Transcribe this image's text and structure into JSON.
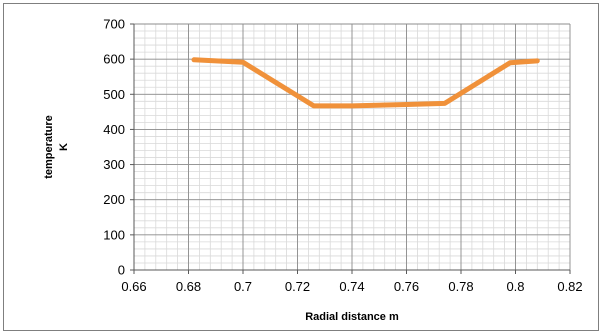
{
  "chart_data": {
    "type": "line",
    "xlabel": "Radial distance  m",
    "ylabel_line1": "temperature",
    "ylabel_line2": "K",
    "xlim": [
      0.66,
      0.82
    ],
    "ylim": [
      0,
      700
    ],
    "x_ticks": [
      "0.66",
      "0.68",
      "0.7",
      "0.72",
      "0.74",
      "0.76",
      "0.78",
      "0.8",
      "0.82"
    ],
    "y_ticks": [
      "0",
      "100",
      "200",
      "300",
      "400",
      "500",
      "600",
      "700"
    ],
    "grid": true,
    "legend": "none",
    "series": [
      {
        "color": "#f0913a",
        "points": [
          {
            "x": 0.682,
            "y": 598
          },
          {
            "x": 0.7,
            "y": 591
          },
          {
            "x": 0.726,
            "y": 467
          },
          {
            "x": 0.74,
            "y": 467
          },
          {
            "x": 0.76,
            "y": 471
          },
          {
            "x": 0.774,
            "y": 474
          },
          {
            "x": 0.798,
            "y": 590
          },
          {
            "x": 0.808,
            "y": 595
          }
        ]
      }
    ]
  }
}
